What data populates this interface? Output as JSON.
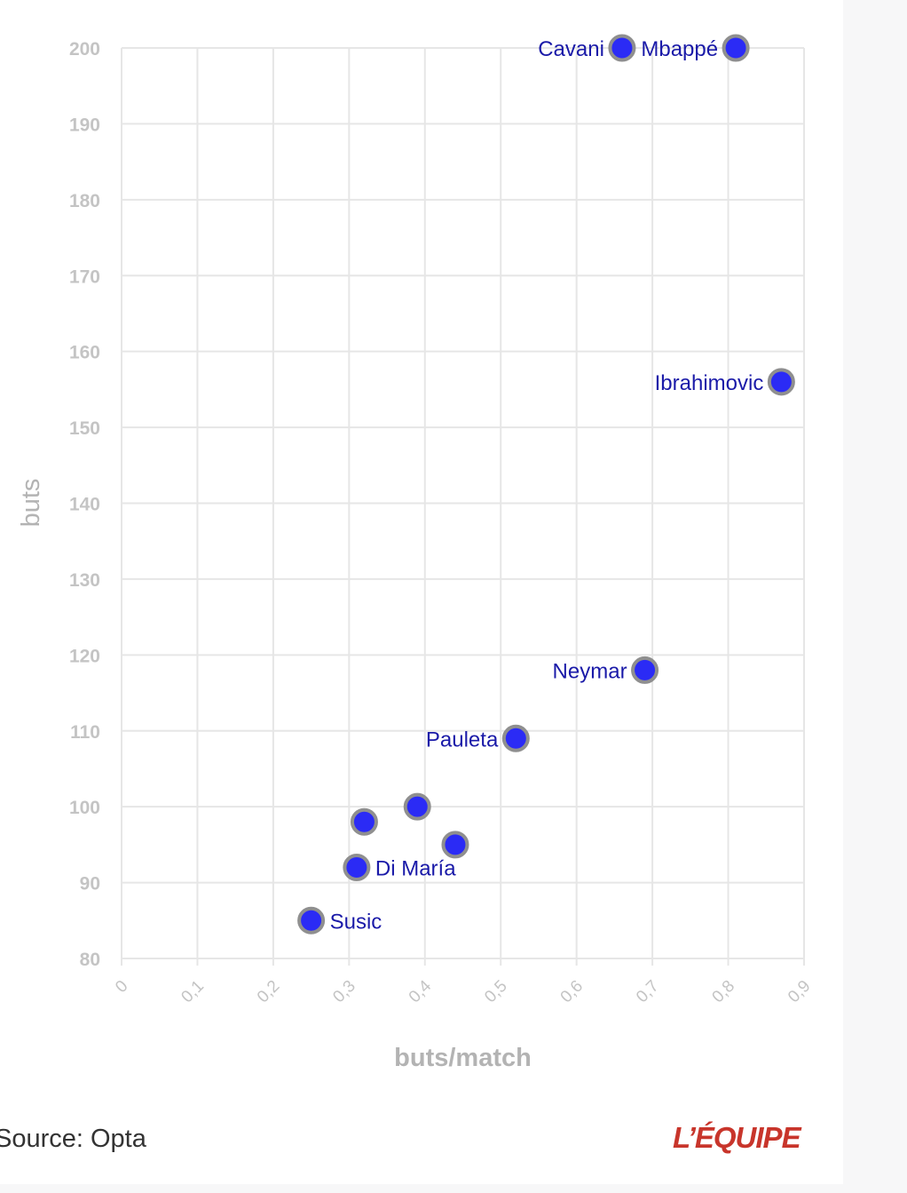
{
  "colors": {
    "grid": "#e6e6e6",
    "axis_text": "#c4c4c4",
    "axis_title": "#b3b3b3",
    "point_fill": "#2b2bf5",
    "point_stroke": "#8f8f8f",
    "label": "#1a1aa8",
    "brand": "#c8352b"
  },
  "chart_data": {
    "type": "scatter",
    "xlabel": "buts/match",
    "ylabel": "buts",
    "xlim": [
      0,
      0.9
    ],
    "ylim": [
      80,
      200
    ],
    "x_ticks": [
      {
        "value": 0,
        "label": "0"
      },
      {
        "value": 0.1,
        "label": "0,1"
      },
      {
        "value": 0.2,
        "label": "0,2"
      },
      {
        "value": 0.3,
        "label": "0,3"
      },
      {
        "value": 0.4,
        "label": "0,4"
      },
      {
        "value": 0.5,
        "label": "0,5"
      },
      {
        "value": 0.6,
        "label": "0,6"
      },
      {
        "value": 0.7,
        "label": "0,7"
      },
      {
        "value": 0.8,
        "label": "0,8"
      },
      {
        "value": 0.9,
        "label": "0,9"
      }
    ],
    "y_ticks": [
      {
        "value": 80,
        "label": "80"
      },
      {
        "value": 90,
        "label": "90"
      },
      {
        "value": 100,
        "label": "100"
      },
      {
        "value": 110,
        "label": "110"
      },
      {
        "value": 120,
        "label": "120"
      },
      {
        "value": 130,
        "label": "130"
      },
      {
        "value": 140,
        "label": "140"
      },
      {
        "value": 150,
        "label": "150"
      },
      {
        "value": 160,
        "label": "160"
      },
      {
        "value": 170,
        "label": "170"
      },
      {
        "value": 180,
        "label": "180"
      },
      {
        "value": 190,
        "label": "190"
      },
      {
        "value": 200,
        "label": "200"
      }
    ],
    "grid": true,
    "points": [
      {
        "name": "Cavani",
        "x": 0.66,
        "y": 200,
        "label_side": "left"
      },
      {
        "name": "Mbappé",
        "x": 0.81,
        "y": 200,
        "label_side": "left"
      },
      {
        "name": "Ibrahimovic",
        "x": 0.87,
        "y": 156,
        "label_side": "left"
      },
      {
        "name": "Neymar",
        "x": 0.69,
        "y": 118,
        "label_side": "left"
      },
      {
        "name": "Pauleta",
        "x": 0.52,
        "y": 109,
        "label_side": "left"
      },
      {
        "name": "",
        "x": 0.39,
        "y": 100,
        "label_side": "none"
      },
      {
        "name": "",
        "x": 0.32,
        "y": 98,
        "label_side": "none"
      },
      {
        "name": "",
        "x": 0.44,
        "y": 95,
        "label_side": "none"
      },
      {
        "name": "Di María",
        "x": 0.31,
        "y": 92,
        "label_side": "right"
      },
      {
        "name": "Susic",
        "x": 0.25,
        "y": 85,
        "label_side": "right"
      }
    ]
  },
  "footer": {
    "source": "Source: Opta",
    "logo_text": "L’ÉQUIPE"
  }
}
